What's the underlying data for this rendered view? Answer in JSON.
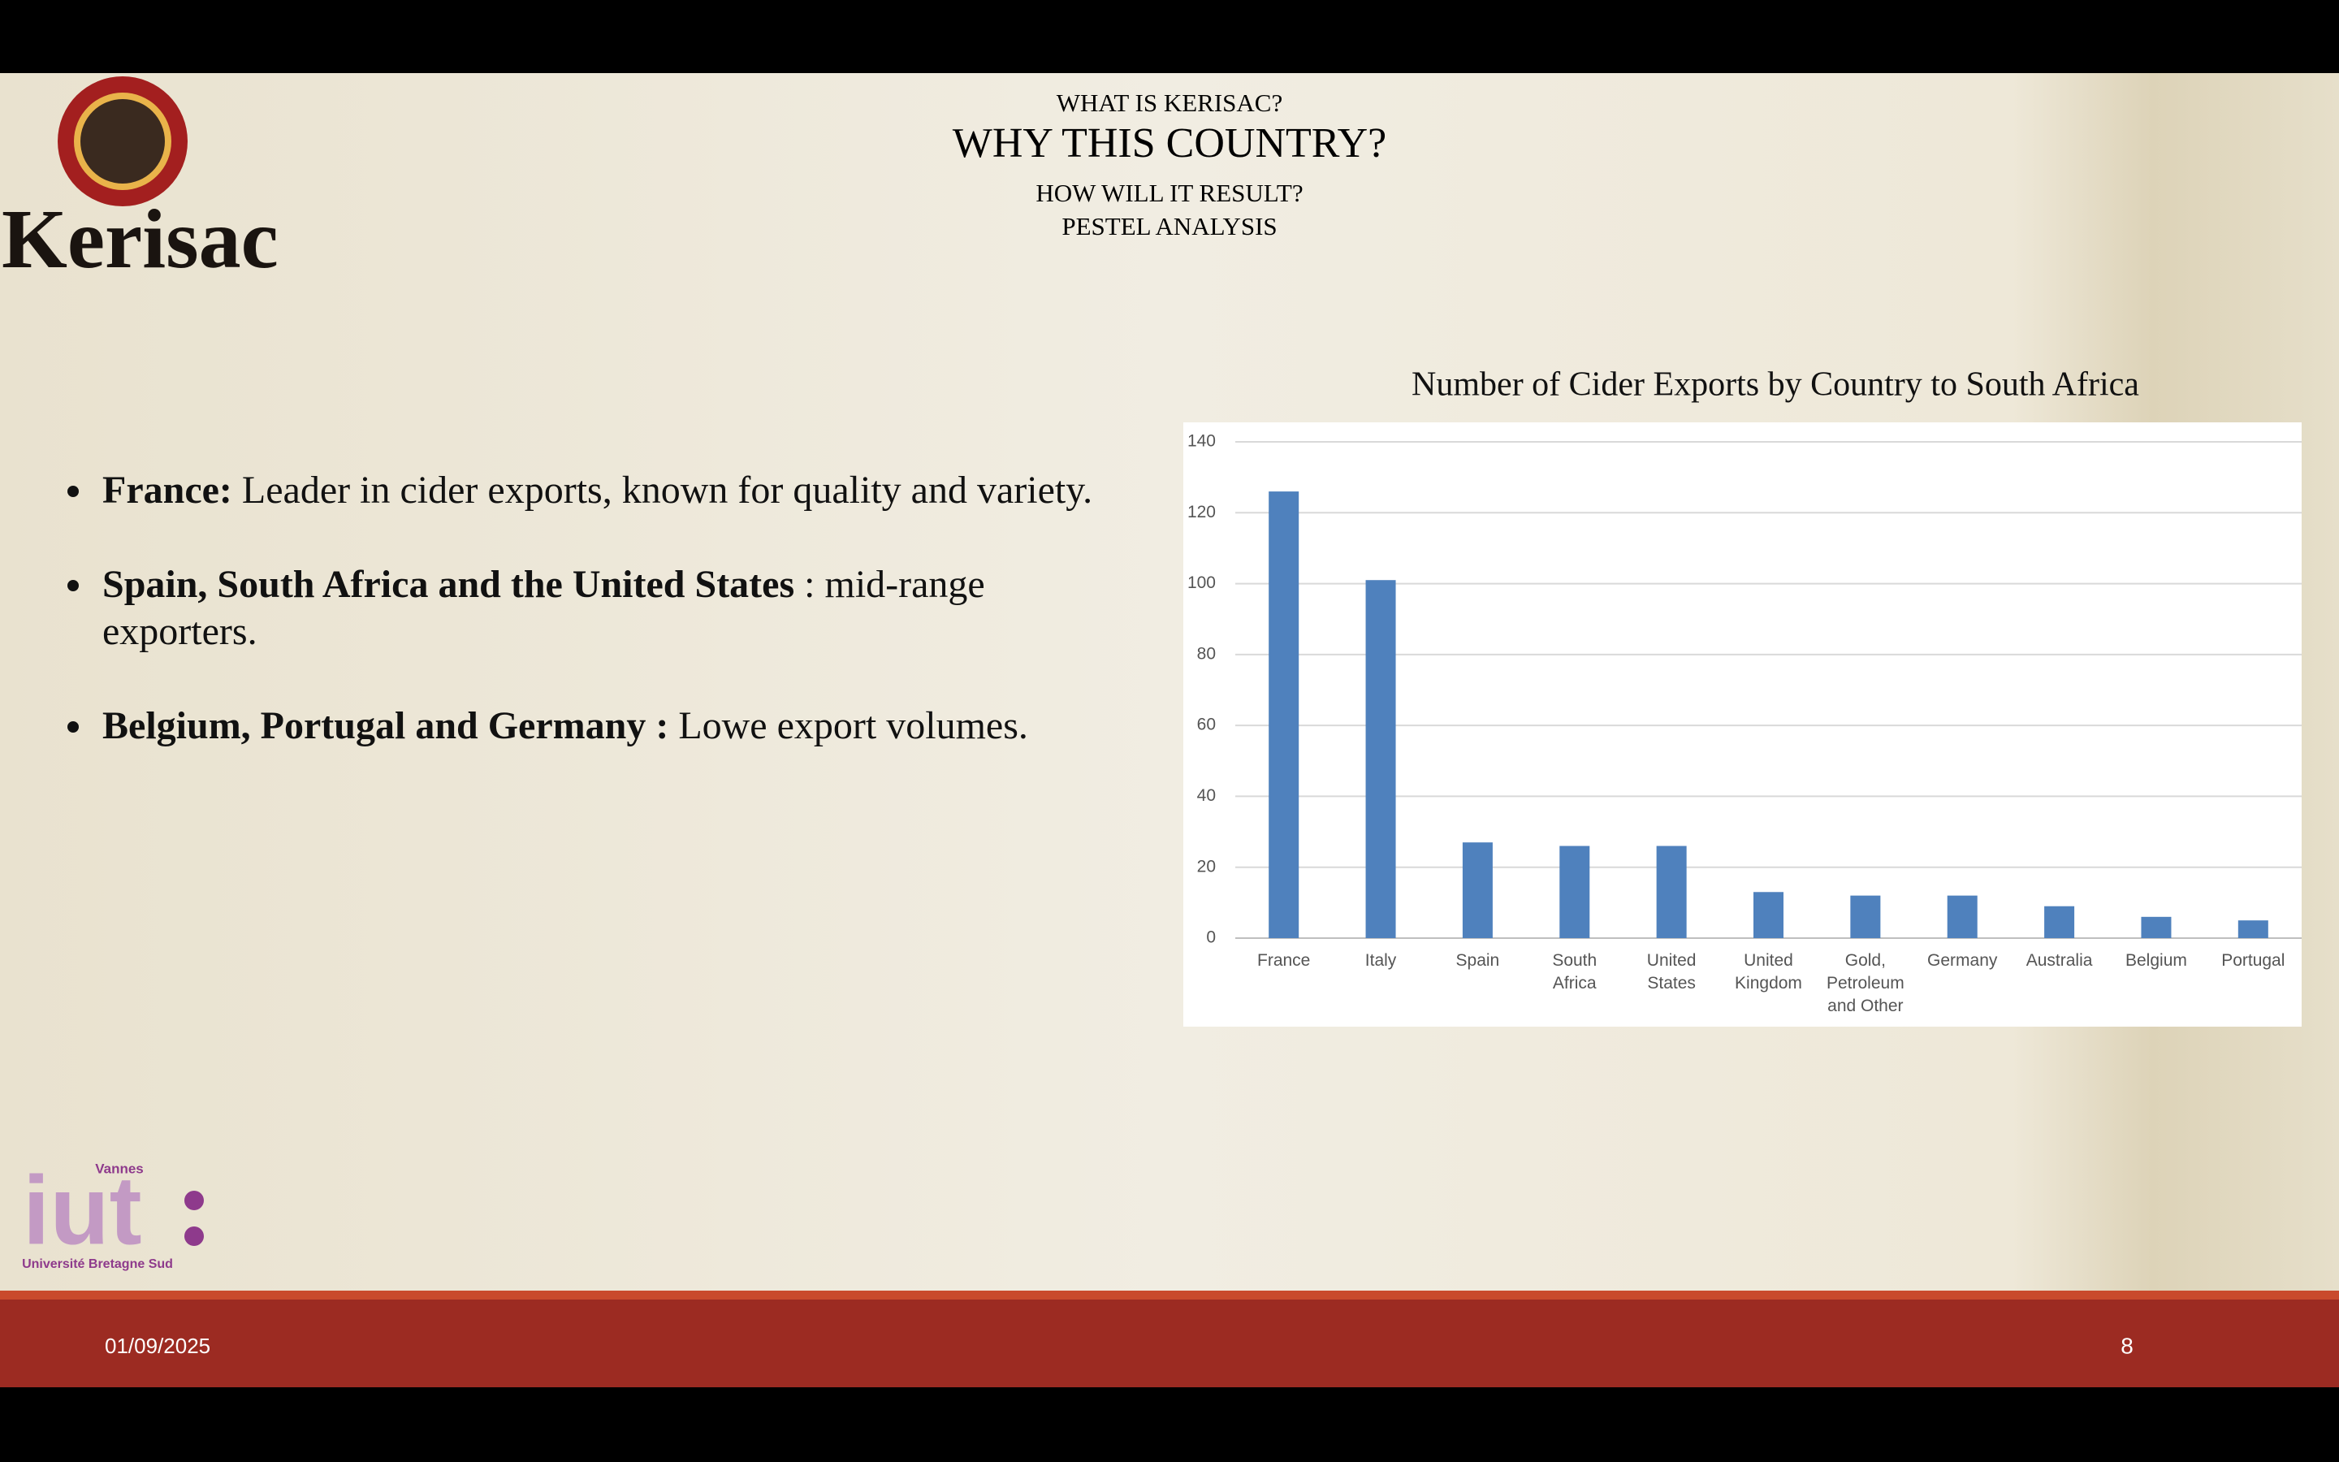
{
  "header": {
    "kicker": "WHAT IS KERISAC?",
    "title": "WHY THIS COUNTRY?",
    "line1": "HOW WILL IT RESULT?",
    "line2": "PESTEL ANALYSIS"
  },
  "logo": {
    "brand": "Kerisac",
    "school_city": "Vannes",
    "school": "iut",
    "university": "Université Bretagne Sud"
  },
  "bullets": [
    {
      "bold": "France:",
      "text": "Leader in cider exports, known for quality and variety."
    },
    {
      "bold": "Spain, South Africa and the United States",
      "text": ": mid-range exporters."
    },
    {
      "bold": "Belgium, Portugal and Germany :",
      "text": "Lowe export volumes."
    }
  ],
  "chart_data": {
    "type": "bar",
    "title": "Number of Cider Exports by Country to South Africa",
    "categories": [
      "France",
      "Italy",
      "Spain",
      "South Africa",
      "United States",
      "United Kingdom",
      "Gold, Petroleum and Other",
      "Germany",
      "Australia",
      "Belgium",
      "Portugal"
    ],
    "values": [
      126,
      101,
      27,
      26,
      26,
      13,
      12,
      12,
      9,
      6,
      5
    ],
    "color": "#4f81bd",
    "ylim": [
      0,
      140
    ],
    "yticks": [
      0,
      20,
      40,
      60,
      80,
      100,
      120,
      140
    ],
    "grid": true
  },
  "footer": {
    "date": "01/09/2025",
    "page": "8"
  }
}
